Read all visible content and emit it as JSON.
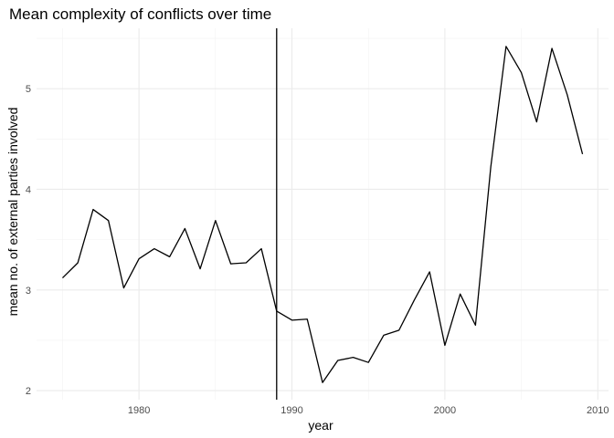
{
  "chart_data": {
    "type": "line",
    "title": "Mean complexity of conflicts over time",
    "xlabel": "year",
    "ylabel": "mean no. of external parties involved",
    "xlim": [
      1973.3,
      2010.7
    ],
    "ylim": [
      1.91,
      5.6
    ],
    "x_ticks": [
      1980,
      1990,
      2000,
      2010
    ],
    "y_ticks": [
      2,
      3,
      4,
      5
    ],
    "grid": true,
    "legend": "none",
    "line_color": "#000000",
    "vline": {
      "x": 1989,
      "color": "#000000"
    },
    "series": [
      {
        "x": [
          1975,
          1976,
          1977,
          1978,
          1979,
          1980,
          1981,
          1982,
          1983,
          1984,
          1985,
          1986,
          1987,
          1988,
          1989,
          1990,
          1991,
          1992,
          1993,
          1994,
          1995,
          1996,
          1997,
          1998,
          1999,
          2000,
          2001,
          2002,
          2003,
          2004,
          2005,
          2006,
          2007,
          2008,
          2009
        ],
        "values": [
          3.12,
          3.27,
          3.8,
          3.69,
          3.02,
          3.31,
          3.41,
          3.33,
          3.61,
          3.21,
          3.69,
          3.26,
          3.27,
          3.41,
          2.79,
          2.7,
          2.71,
          2.08,
          2.3,
          2.33,
          2.28,
          2.55,
          2.6,
          2.9,
          3.18,
          2.45,
          2.96,
          2.65,
          4.22,
          5.42,
          5.16,
          4.67,
          5.4,
          4.94,
          4.35
        ]
      }
    ]
  }
}
